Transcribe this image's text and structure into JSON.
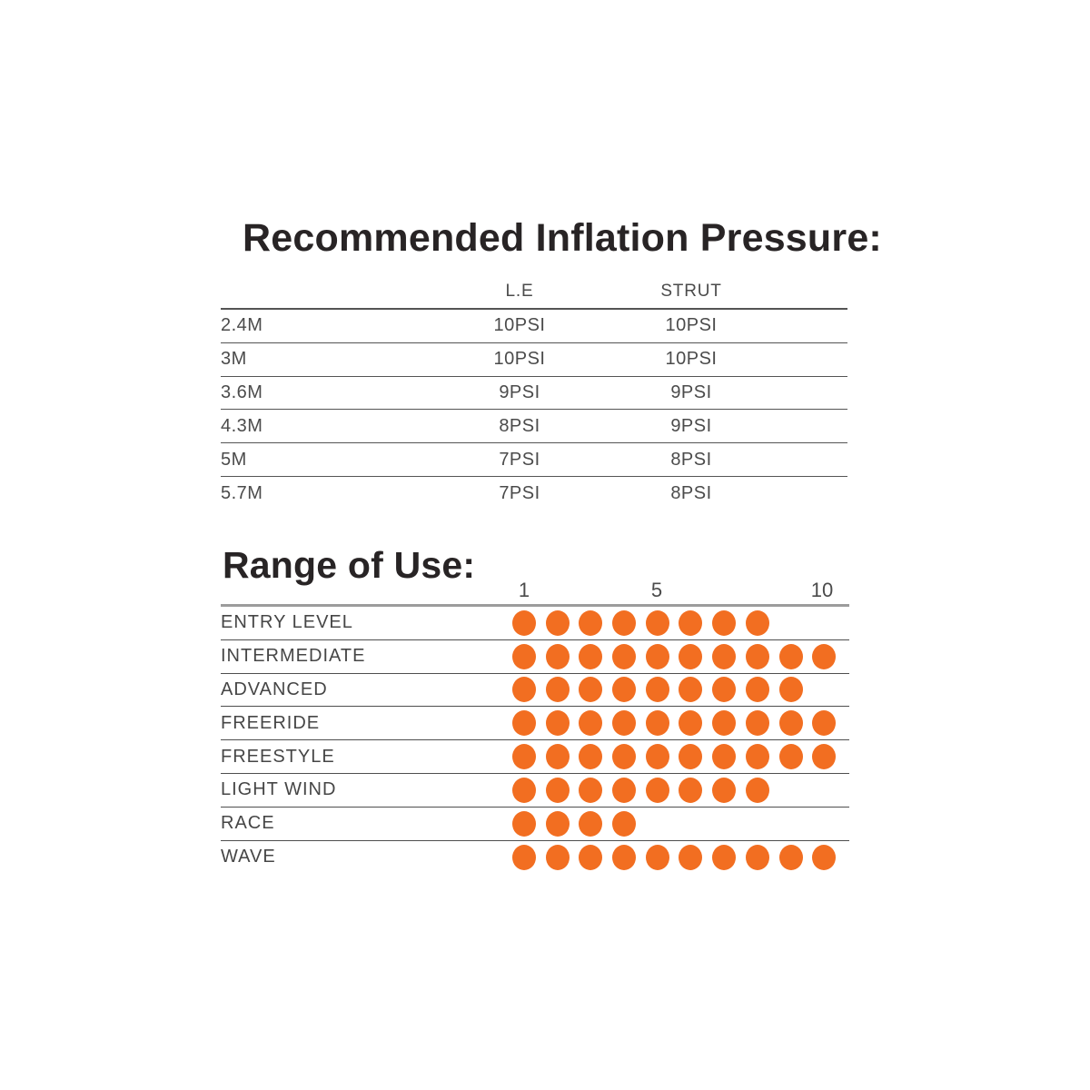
{
  "page": {
    "background": "#ffffff",
    "text_color": "#4b4b4b",
    "title_color": "#282425",
    "line_color": "#545454",
    "scale_line_color": "#9c9c9c"
  },
  "pressure_table": {
    "title": "Recommended Inflation Pressure:",
    "columns": [
      "L.E",
      "STRUT"
    ],
    "rows": [
      {
        "size": "2.4M",
        "le": "10PSI",
        "strut": "10PSI"
      },
      {
        "size": "3M",
        "le": "10PSI",
        "strut": "10PSI"
      },
      {
        "size": "3.6M",
        "le": "9PSI",
        "strut": "9PSI"
      },
      {
        "size": "4.3M",
        "le": "8PSI",
        "strut": "9PSI"
      },
      {
        "size": "5M",
        "le": "7PSI",
        "strut": "8PSI"
      },
      {
        "size": "5.7M",
        "le": "7PSI",
        "strut": "8PSI"
      }
    ]
  },
  "range_of_use": {
    "title": "Range of Use:",
    "scale": {
      "min": "1",
      "mid": "5",
      "max": "10"
    },
    "dot_color": "#f26e21",
    "rows": [
      {
        "label": "ENTRY LEVEL",
        "value": 8
      },
      {
        "label": "INTERMEDIATE",
        "value": 10
      },
      {
        "label": "ADVANCED",
        "value": 9
      },
      {
        "label": "FREERIDE",
        "value": 10
      },
      {
        "label": "FREESTYLE",
        "value": 10
      },
      {
        "label": "LIGHT WIND",
        "value": 8
      },
      {
        "label": "RACE",
        "value": 4
      },
      {
        "label": "WAVE",
        "value": 10
      }
    ]
  },
  "chart_data": [
    {
      "type": "table",
      "title": "Recommended Inflation Pressure:",
      "columns": [
        "",
        "L.E",
        "STRUT"
      ],
      "rows": [
        [
          "2.4M",
          "10PSI",
          "10PSI"
        ],
        [
          "3M",
          "10PSI",
          "10PSI"
        ],
        [
          "3.6M",
          "9PSI",
          "9PSI"
        ],
        [
          "4.3M",
          "8PSI",
          "9PSI"
        ],
        [
          "5M",
          "7PSI",
          "8PSI"
        ],
        [
          "5.7M",
          "7PSI",
          "8PSI"
        ]
      ]
    },
    {
      "type": "scatter",
      "variant": "dot-rating-rows",
      "title": "Range of Use:",
      "categories": [
        "ENTRY LEVEL",
        "INTERMEDIATE",
        "ADVANCED",
        "FREERIDE",
        "FREESTYLE",
        "LIGHT WIND",
        "RACE",
        "WAVE"
      ],
      "values": [
        8,
        10,
        9,
        10,
        10,
        8,
        4,
        10
      ],
      "xlim": [
        1,
        10
      ],
      "x_ticks": [
        "1",
        "5",
        "10"
      ],
      "grid": "horizontal-row-separators",
      "legend_position": "none",
      "dot_color": "#f26e21"
    }
  ]
}
